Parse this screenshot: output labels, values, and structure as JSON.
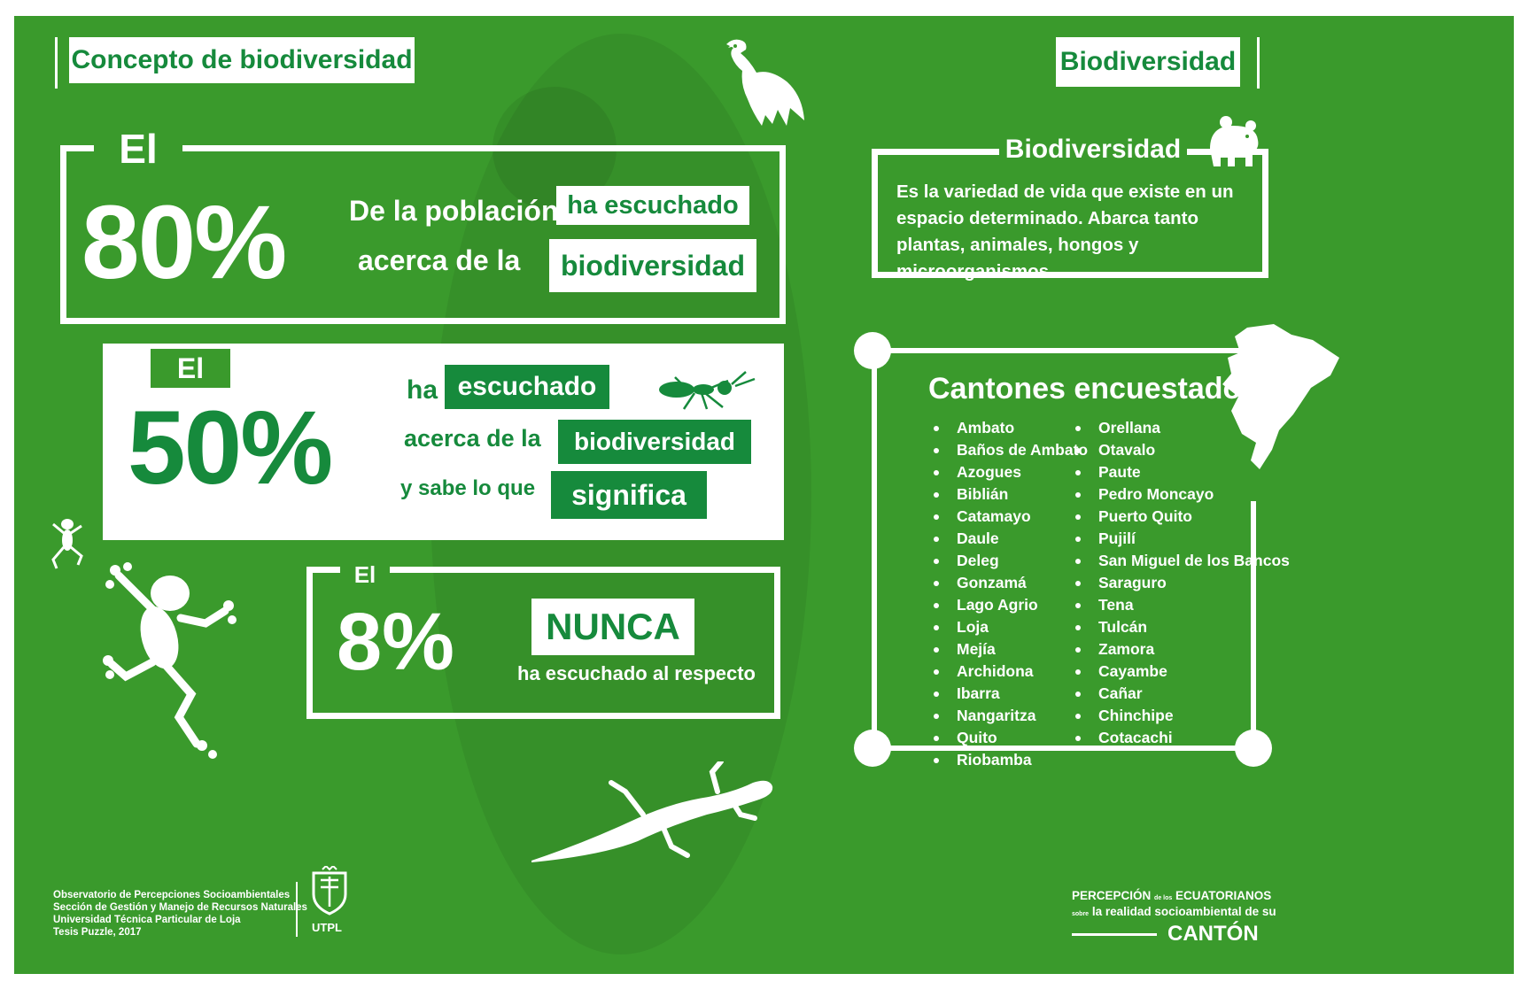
{
  "colors": {
    "background": "#3a9a2c",
    "dark_green": "#168a3c",
    "white": "#ffffff"
  },
  "left_header": "Concepto de biodiversidad",
  "right_header": "Biodiversidad",
  "stat80": {
    "el": "El",
    "percent": "80%",
    "line1": "De la población",
    "line2": "acerca de la",
    "pill1": "ha escuchado",
    "pill2": "biodiversidad"
  },
  "stat50": {
    "el": "El",
    "percent": "50%",
    "line1": "ha",
    "line2": "acerca de la",
    "line3": "y sabe lo que",
    "pill1": "escuchado",
    "pill2": "biodiversidad",
    "pill3": "significa"
  },
  "stat8": {
    "el": "El",
    "percent": "8%",
    "pill": "NUNCA",
    "line": "ha escuchado al respecto"
  },
  "definition": {
    "title": "Biodiversidad",
    "text": "Es la variedad de vida que existe en un espacio determinado. Abarca tanto plantas, animales, hongos y microorganismos."
  },
  "cantones": {
    "title": "Cantones encuestados",
    "col1": [
      "Ambato",
      "Baños de Ambato",
      "Azogues",
      "Biblián",
      "Catamayo",
      "Daule",
      "Deleg",
      "Gonzamá",
      "Lago Agrio",
      "Loja",
      "Mejía",
      "Archidona",
      "Ibarra",
      "Nangaritza",
      "Quito",
      "Riobamba"
    ],
    "col2": [
      "Orellana",
      "Otavalo",
      "Paute",
      "Pedro Moncayo",
      "Puerto Quito",
      "Pujilí",
      "San Miguel de los Bancos",
      "Saraguro",
      "Tena",
      "Tulcán",
      "Zamora",
      "Cayambe",
      "Cañar",
      "Chinchipe",
      "Cotacachi"
    ]
  },
  "credits": {
    "line1": "Observatorio de Percepciones Socioambientales",
    "line2": "Sección de Gestión y Manejo de Recursos Naturales",
    "line3": "Universidad Técnica Particular de Loja",
    "line4": "Tesis Puzzle, 2017",
    "logo_text": "UTPL"
  },
  "brand": {
    "line1_a": "PERCEPCIÓN",
    "line1_small": "de los",
    "line1_b": "ECUATORIANOS",
    "line2_small": "sobre",
    "line2": "la realidad socioambiental de su",
    "line3": "CANTÓN"
  },
  "icons": [
    "condor-icon",
    "bear-icon",
    "ant-icon",
    "small-frog-icon",
    "frog-icon",
    "lizard-icon",
    "ecuador-map-icon",
    "utpl-shield-icon"
  ]
}
